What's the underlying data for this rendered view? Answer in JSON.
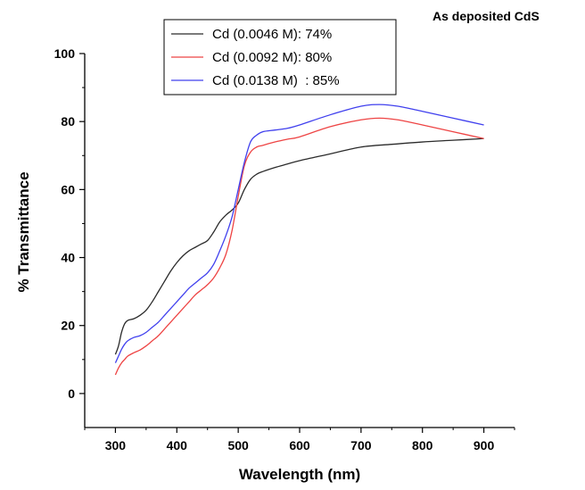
{
  "chart_data": {
    "type": "line",
    "title": "As deposited CdS",
    "xlabel": "Wavelength (nm)",
    "ylabel": "% Transmittance",
    "xlim": [
      250,
      950
    ],
    "ylim": [
      -10,
      100
    ],
    "xticks": [
      300,
      400,
      500,
      600,
      700,
      800,
      900
    ],
    "yticks": [
      0,
      20,
      40,
      60,
      80,
      100
    ],
    "grid": false,
    "legend_placement": "top-center",
    "series": [
      {
        "name": "Cd (0.0046 M): 74%",
        "color": "#2b2b2b",
        "x": [
          300,
          305,
          310,
          315,
          320,
          330,
          340,
          350,
          360,
          370,
          380,
          390,
          400,
          410,
          420,
          430,
          440,
          450,
          460,
          470,
          480,
          490,
          500,
          510,
          520,
          530,
          540,
          560,
          580,
          600,
          650,
          700,
          750,
          800,
          850,
          900
        ],
        "y": [
          11.5,
          14,
          18,
          20.5,
          21.5,
          22,
          23,
          24.5,
          27,
          30,
          33,
          36,
          38.5,
          40.5,
          42,
          43,
          44,
          45,
          47.5,
          50.5,
          52.5,
          54,
          56,
          60,
          63,
          64.5,
          65.3,
          66.5,
          67.5,
          68.5,
          70.5,
          72.5,
          73.3,
          74,
          74.5,
          75
        ]
      },
      {
        "name": "Cd (0.0092 M): 80%",
        "color": "#ee4444",
        "x": [
          300,
          305,
          310,
          315,
          320,
          330,
          340,
          350,
          360,
          370,
          380,
          390,
          400,
          410,
          420,
          430,
          440,
          450,
          460,
          470,
          480,
          490,
          500,
          510,
          520,
          530,
          540,
          560,
          580,
          600,
          650,
          700,
          730,
          760,
          800,
          850,
          900
        ],
        "y": [
          5.5,
          7.5,
          9,
          10,
          11,
          12,
          12.8,
          14,
          15.5,
          17,
          19,
          21,
          23,
          25,
          27,
          29,
          30.5,
          32,
          34,
          37,
          41,
          48,
          58,
          67,
          71,
          72.5,
          73,
          74,
          74.8,
          75.5,
          78.5,
          80.5,
          81,
          80.5,
          79,
          77,
          75
        ]
      },
      {
        "name": "Cd (0.0138 M)  : 85%",
        "color": "#4040ee",
        "x": [
          300,
          305,
          310,
          315,
          320,
          330,
          340,
          350,
          360,
          370,
          380,
          390,
          400,
          410,
          420,
          430,
          440,
          450,
          460,
          470,
          480,
          490,
          500,
          510,
          520,
          530,
          540,
          560,
          580,
          600,
          650,
          700,
          730,
          760,
          800,
          850,
          900
        ],
        "y": [
          9,
          11,
          13,
          14.5,
          15.5,
          16.5,
          17,
          18,
          19.5,
          21,
          23,
          25,
          27,
          29,
          31,
          32.5,
          34,
          35.5,
          38,
          42,
          46.5,
          52,
          60,
          68,
          74,
          76,
          77,
          77.5,
          78,
          79,
          82,
          84.5,
          85,
          84.5,
          83,
          81,
          79
        ]
      }
    ]
  }
}
